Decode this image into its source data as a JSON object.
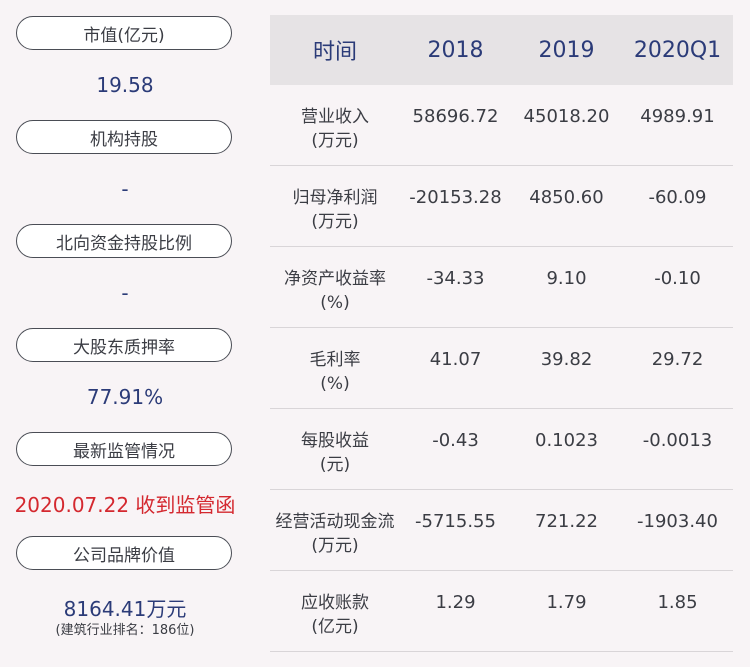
{
  "left": {
    "items": [
      {
        "label": "市值(亿元)",
        "value": "19.58"
      },
      {
        "label": "机构持股",
        "value": "-"
      },
      {
        "label": "北向资金持股比例",
        "value": "-"
      },
      {
        "label": "大股东质押率",
        "value": "77.91%"
      },
      {
        "label": "最新监管情况",
        "value": "2020.07.22 收到监管函"
      },
      {
        "label": "公司品牌价值",
        "value": "8164.41万元",
        "note": "(建筑行业排名：186位)"
      }
    ]
  },
  "table": {
    "header": [
      "时间",
      "2018",
      "2019",
      "2020Q1"
    ],
    "rows": [
      {
        "label1": "营业收入",
        "label2": "(万元)",
        "values": [
          "58696.72",
          "45018.20",
          "4989.91"
        ]
      },
      {
        "label1": "归母净利润",
        "label2": "(万元)",
        "values": [
          "-20153.28",
          "4850.60",
          "-60.09"
        ]
      },
      {
        "label1": "净资产收益率",
        "label2": "(%)",
        "values": [
          "-34.33",
          "9.10",
          "-0.10"
        ]
      },
      {
        "label1": "毛利率",
        "label2": "(%)",
        "values": [
          "41.07",
          "39.82",
          "29.72"
        ]
      },
      {
        "label1": "每股收益",
        "label2": "(元)",
        "values": [
          "-0.43",
          "0.1023",
          "-0.0013"
        ]
      },
      {
        "label1": "经营活动现金流",
        "label2": "(万元)",
        "values": [
          "-5715.55",
          "721.22",
          "-1903.40"
        ]
      },
      {
        "label1": "应收账款",
        "label2": "(亿元)",
        "values": [
          "1.29",
          "1.79",
          "1.85"
        ]
      }
    ]
  },
  "colors": {
    "value_blue": "#2b3b78",
    "alert_red": "#d4282f"
  }
}
